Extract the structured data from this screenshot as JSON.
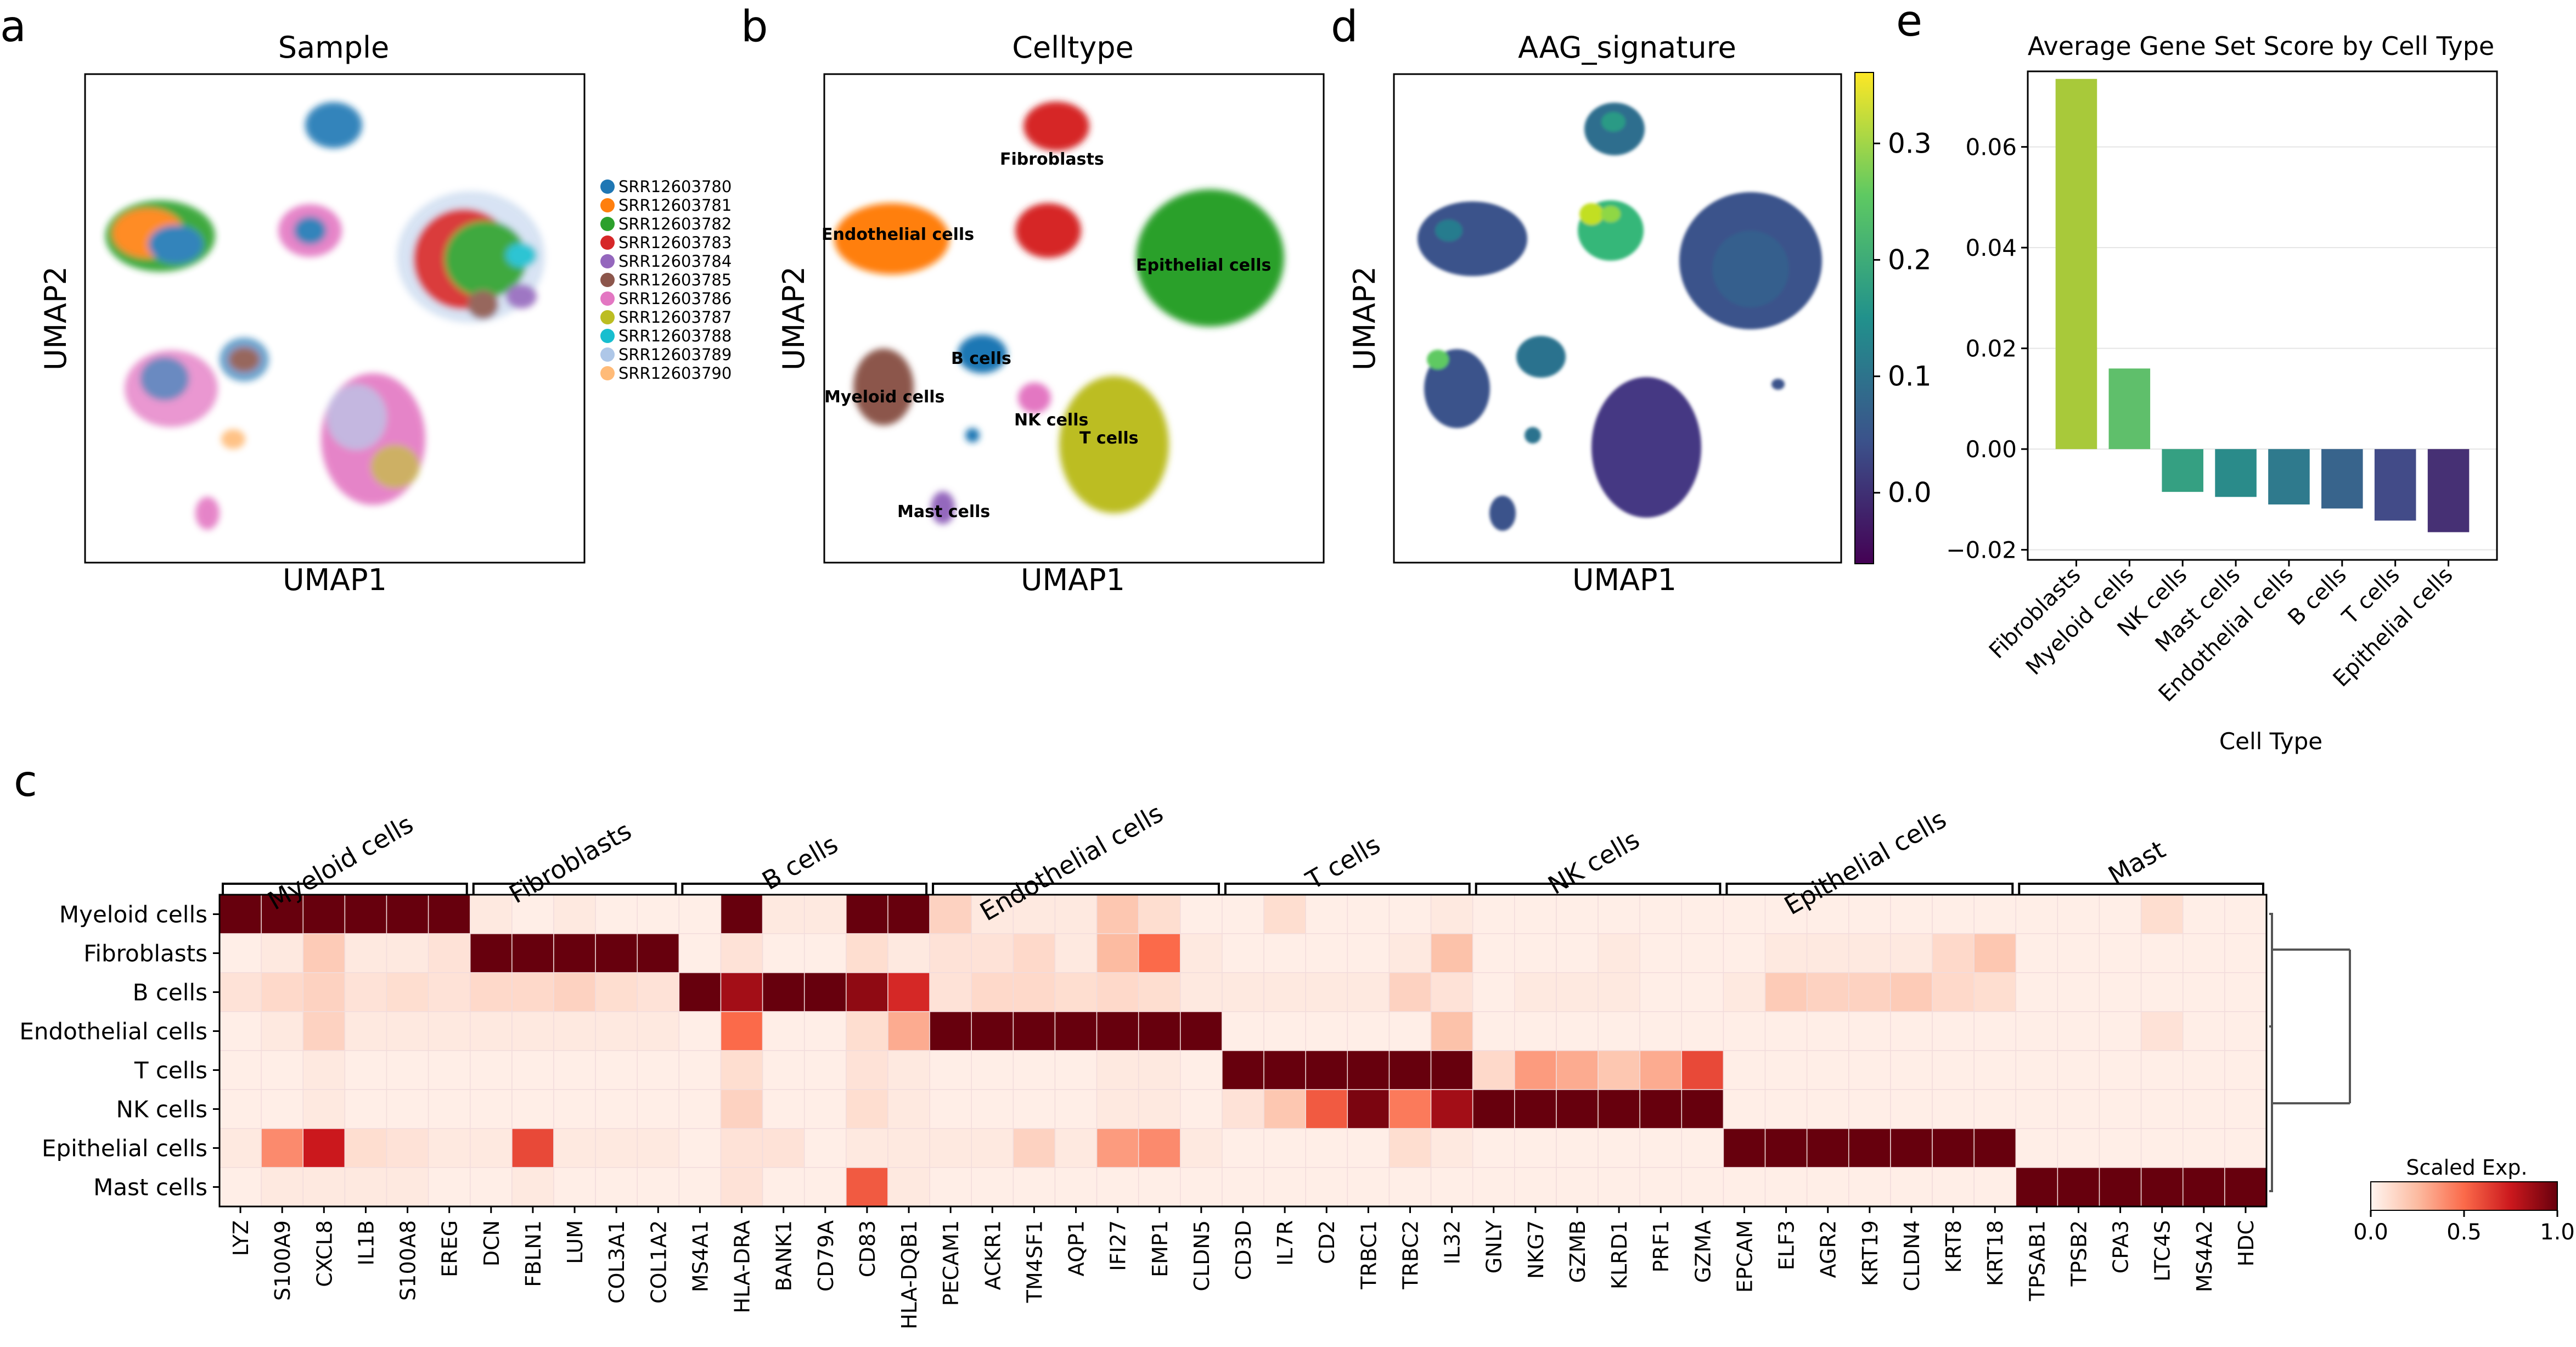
{
  "panel_labels": {
    "a": "a",
    "b": "b",
    "c": "c",
    "d": "d",
    "e": "e"
  },
  "chart_data": [
    {
      "id": "a",
      "type": "scatter",
      "title": "Sample",
      "xlabel": "UMAP1",
      "ylabel": "UMAP2",
      "legend": {
        "placement": "right",
        "entries": [
          {
            "label": "SRR12603780",
            "color": "#1f77b4"
          },
          {
            "label": "SRR12603781",
            "color": "#ff7f0e"
          },
          {
            "label": "SRR12603782",
            "color": "#2ca02c"
          },
          {
            "label": "SRR12603783",
            "color": "#d62728"
          },
          {
            "label": "SRR12603784",
            "color": "#9467bd"
          },
          {
            "label": "SRR12603785",
            "color": "#8c564b"
          },
          {
            "label": "SRR12603786",
            "color": "#e377c2"
          },
          {
            "label": "SRR12603787",
            "color": "#bcbd22"
          },
          {
            "label": "SRR12603788",
            "color": "#17becf"
          },
          {
            "label": "SRR12603789",
            "color": "#aec7e8"
          },
          {
            "label": "SRR12603790",
            "color": "#ffbb78"
          }
        ]
      }
    },
    {
      "id": "b",
      "type": "scatter",
      "title": "Celltype",
      "xlabel": "UMAP1",
      "ylabel": "UMAP2",
      "clusters": [
        {
          "label": "Fibroblasts",
          "color": "#d62728"
        },
        {
          "label": "Endothelial cells",
          "color": "#ff7f0e"
        },
        {
          "label": "Epithelial cells",
          "color": "#2ca02c"
        },
        {
          "label": "B cells",
          "color": "#1f77b4"
        },
        {
          "label": "Myeloid cells",
          "color": "#8c564b"
        },
        {
          "label": "NK cells",
          "color": "#e377c2"
        },
        {
          "label": "T cells",
          "color": "#bcbd22"
        },
        {
          "label": "Mast cells",
          "color": "#9467bd"
        }
      ]
    },
    {
      "id": "d",
      "type": "scatter",
      "title": "AAG_signature",
      "xlabel": "UMAP1",
      "ylabel": "UMAP2",
      "colorbar": {
        "ticks": [
          "0.3",
          "0.2",
          "0.1",
          "0.0"
        ],
        "range": [
          -0.06,
          0.36
        ],
        "colormap": "viridis"
      }
    },
    {
      "id": "e",
      "type": "bar",
      "title": "Average Gene Set Score by Cell Type",
      "xlabel": "Cell Type",
      "ylabel": "",
      "ylim": [
        -0.022,
        0.075
      ],
      "yticks": [
        "0.06",
        "0.04",
        "0.02",
        "0.00",
        "−0.02"
      ],
      "categories": [
        "Fibroblasts",
        "Myeloid cells",
        "NK cells",
        "Mast cells",
        "Endothelial cells",
        "B cells",
        "T cells",
        "Epithelial cells"
      ],
      "values": [
        0.0735,
        0.016,
        -0.0085,
        -0.0095,
        -0.011,
        -0.0118,
        -0.0142,
        -0.0165
      ],
      "colors": [
        "#a8c93a",
        "#5fbf6b",
        "#35a082",
        "#2a8b8a",
        "#2f7a8d",
        "#38648c",
        "#424b88",
        "#463074"
      ],
      "grid": "y"
    },
    {
      "id": "c",
      "type": "heatmap",
      "colorbar": {
        "title": "Scaled Exp.",
        "ticks": [
          "0.0",
          "0.5",
          "1.0"
        ],
        "colormap": "Reds"
      },
      "rows": [
        "Myeloid cells",
        "Fibroblasts",
        "B cells",
        "Endothelial cells",
        "T cells",
        "NK cells",
        "Epithelial cells",
        "Mast cells"
      ],
      "columns": [
        "LYZ",
        "S100A9",
        "CXCL8",
        "IL1B",
        "S100A8",
        "EREG",
        "DCN",
        "FBLN1",
        "LUM",
        "COL3A1",
        "COL1A2",
        "MS4A1",
        "HLA-DRA",
        "BANK1",
        "CD79A",
        "CD83",
        "HLA-DQB1",
        "PECAM1",
        "ACKR1",
        "TM4SF1",
        "AQP1",
        "IFI27",
        "EMP1",
        "CLDN5",
        "CD3D",
        "IL7R",
        "CD2",
        "TRBC1",
        "TRBC2",
        "IL32",
        "GNLY",
        "NKG7",
        "GZMB",
        "KLRD1",
        "PRF1",
        "GZMA",
        "EPCAM",
        "ELF3",
        "AGR2",
        "KRT19",
        "CLDN4",
        "KRT8",
        "KRT18",
        "TPSAB1",
        "TPSB2",
        "CPA3",
        "LTC4S",
        "MS4A2",
        "HDC"
      ],
      "groups": [
        {
          "label": "Myeloid cells",
          "start": 0,
          "end": 5
        },
        {
          "label": "Fibroblasts",
          "start": 6,
          "end": 10
        },
        {
          "label": "B cells",
          "start": 11,
          "end": 16
        },
        {
          "label": "Endothelial cells",
          "start": 17,
          "end": 23
        },
        {
          "label": "T cells",
          "start": 24,
          "end": 29
        },
        {
          "label": "NK cells",
          "start": 30,
          "end": 35
        },
        {
          "label": "Epithelial cells",
          "start": 36,
          "end": 42
        },
        {
          "label": "Mast",
          "start": 43,
          "end": 48
        }
      ],
      "values": [
        [
          1,
          1,
          1,
          1,
          1,
          1,
          0.05,
          0.03,
          0.05,
          0.03,
          0.03,
          0.03,
          1,
          0.05,
          0.05,
          1,
          1,
          0.15,
          0.05,
          0.05,
          0.05,
          0.2,
          0.1,
          0.03,
          0.03,
          0.1,
          0.03,
          0.03,
          0.03,
          0.05,
          0.03,
          0.03,
          0.03,
          0.03,
          0.03,
          0.03,
          0.03,
          0.03,
          0.03,
          0.03,
          0.03,
          0.03,
          0.03,
          0.03,
          0.03,
          0.03,
          0.1,
          0.03,
          0.03
        ],
        [
          0.03,
          0.05,
          0.18,
          0.05,
          0.05,
          0.08,
          1,
          1,
          1,
          1,
          1,
          0.03,
          0.08,
          0.03,
          0.03,
          0.1,
          0.05,
          0.08,
          0.08,
          0.12,
          0.05,
          0.25,
          0.5,
          0.05,
          0.03,
          0.03,
          0.03,
          0.03,
          0.05,
          0.22,
          0.03,
          0.03,
          0.03,
          0.05,
          0.03,
          0.03,
          0.03,
          0.05,
          0.05,
          0.05,
          0.05,
          0.12,
          0.2,
          0.03,
          0.03,
          0.03,
          0.03,
          0.03,
          0.03
        ],
        [
          0.08,
          0.12,
          0.15,
          0.08,
          0.1,
          0.08,
          0.12,
          0.12,
          0.15,
          0.1,
          0.08,
          1,
          0.85,
          1,
          1,
          0.9,
          0.7,
          0.08,
          0.12,
          0.12,
          0.1,
          0.12,
          0.1,
          0.05,
          0.05,
          0.05,
          0.05,
          0.05,
          0.15,
          0.08,
          0.03,
          0.05,
          0.05,
          0.05,
          0.03,
          0.03,
          0.05,
          0.18,
          0.15,
          0.15,
          0.18,
          0.12,
          0.1,
          0.03,
          0.03,
          0.03,
          0.03,
          0.03,
          0.03
        ],
        [
          0.03,
          0.05,
          0.15,
          0.05,
          0.05,
          0.05,
          0.05,
          0.05,
          0.05,
          0.05,
          0.05,
          0.03,
          0.5,
          0.03,
          0.03,
          0.1,
          0.3,
          1,
          1,
          1,
          1,
          1,
          1,
          1,
          0.03,
          0.03,
          0.03,
          0.03,
          0.03,
          0.22,
          0.03,
          0.03,
          0.03,
          0.03,
          0.03,
          0.03,
          0.03,
          0.03,
          0.03,
          0.03,
          0.03,
          0.03,
          0.03,
          0.03,
          0.03,
          0.03,
          0.08,
          0.03,
          0.03
        ],
        [
          0.03,
          0.03,
          0.05,
          0.03,
          0.03,
          0.03,
          0.03,
          0.03,
          0.03,
          0.03,
          0.03,
          0.03,
          0.1,
          0.03,
          0.03,
          0.08,
          0.05,
          0.03,
          0.03,
          0.03,
          0.03,
          0.05,
          0.05,
          0.03,
          1,
          1,
          1,
          1,
          1,
          1,
          0.12,
          0.35,
          0.3,
          0.2,
          0.3,
          0.6,
          0.03,
          0.03,
          0.03,
          0.03,
          0.03,
          0.03,
          0.03,
          0.03,
          0.03,
          0.03,
          0.03,
          0.03,
          0.03
        ],
        [
          0.03,
          0.03,
          0.05,
          0.03,
          0.03,
          0.03,
          0.03,
          0.03,
          0.03,
          0.03,
          0.03,
          0.03,
          0.15,
          0.03,
          0.03,
          0.1,
          0.05,
          0.03,
          0.03,
          0.03,
          0.03,
          0.05,
          0.05,
          0.03,
          0.08,
          0.2,
          0.55,
          0.95,
          0.45,
          0.85,
          1,
          1,
          1,
          1,
          1,
          1,
          0.03,
          0.03,
          0.03,
          0.03,
          0.03,
          0.03,
          0.03,
          0.03,
          0.03,
          0.03,
          0.03,
          0.03,
          0.03
        ],
        [
          0.05,
          0.4,
          0.75,
          0.1,
          0.08,
          0.05,
          0.05,
          0.6,
          0.05,
          0.05,
          0.05,
          0.03,
          0.08,
          0.08,
          0.03,
          0.05,
          0.05,
          0.05,
          0.05,
          0.15,
          0.05,
          0.35,
          0.4,
          0.05,
          0.03,
          0.03,
          0.03,
          0.03,
          0.1,
          0.05,
          0.03,
          0.03,
          0.03,
          0.03,
          0.03,
          0.03,
          1,
          1,
          1,
          1,
          1,
          1,
          1,
          0.03,
          0.03,
          0.03,
          0.03,
          0.03,
          0.03
        ],
        [
          0.03,
          0.05,
          0.05,
          0.05,
          0.05,
          0.03,
          0.03,
          0.05,
          0.03,
          0.03,
          0.03,
          0.03,
          0.08,
          0.03,
          0.03,
          0.55,
          0.05,
          0.03,
          0.03,
          0.03,
          0.03,
          0.03,
          0.03,
          0.03,
          0.03,
          0.03,
          0.03,
          0.03,
          0.03,
          0.03,
          0.03,
          0.03,
          0.03,
          0.03,
          0.03,
          0.03,
          0.03,
          0.03,
          0.03,
          0.03,
          0.03,
          0.03,
          0.03,
          1,
          1,
          1,
          1,
          1,
          1
        ]
      ]
    }
  ]
}
